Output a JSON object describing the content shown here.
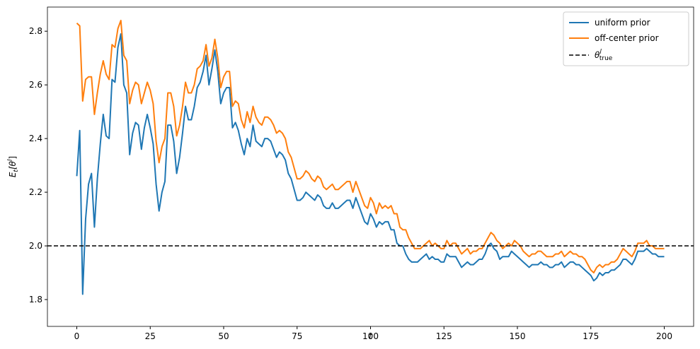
{
  "chart_data": {
    "type": "line",
    "xlabel": "t",
    "ylabel": {
      "main": "E",
      "sub": "t",
      "open": "[θ",
      "sup": "l",
      "close": "]"
    },
    "x": [
      0,
      1,
      2,
      3,
      4,
      5,
      6,
      7,
      8,
      9,
      10,
      11,
      12,
      13,
      14,
      15,
      16,
      17,
      18,
      19,
      20,
      21,
      22,
      23,
      24,
      25,
      26,
      27,
      28,
      29,
      30,
      31,
      32,
      33,
      34,
      35,
      36,
      37,
      38,
      39,
      40,
      41,
      42,
      43,
      44,
      45,
      46,
      47,
      48,
      49,
      50,
      51,
      52,
      53,
      54,
      55,
      56,
      57,
      58,
      59,
      60,
      61,
      62,
      63,
      64,
      65,
      66,
      67,
      68,
      69,
      70,
      71,
      72,
      73,
      74,
      75,
      76,
      77,
      78,
      79,
      80,
      81,
      82,
      83,
      84,
      85,
      86,
      87,
      88,
      89,
      90,
      91,
      92,
      93,
      94,
      95,
      96,
      97,
      98,
      99,
      100,
      101,
      102,
      103,
      104,
      105,
      106,
      107,
      108,
      109,
      110,
      111,
      112,
      113,
      114,
      115,
      116,
      117,
      118,
      119,
      120,
      121,
      122,
      123,
      124,
      125,
      126,
      127,
      128,
      129,
      130,
      131,
      132,
      133,
      134,
      135,
      136,
      137,
      138,
      139,
      140,
      141,
      142,
      143,
      144,
      145,
      146,
      147,
      148,
      149,
      150,
      151,
      152,
      153,
      154,
      155,
      156,
      157,
      158,
      159,
      160,
      161,
      162,
      163,
      164,
      165,
      166,
      167,
      168,
      169,
      170,
      171,
      172,
      173,
      174,
      175,
      176,
      177,
      178,
      179,
      180,
      181,
      182,
      183,
      184,
      185,
      186,
      187,
      188,
      189,
      190,
      191,
      192,
      193,
      194,
      195,
      196,
      197,
      198,
      199,
      200
    ],
    "series": [
      {
        "name": "uniform prior",
        "color": "#1f77b4",
        "values": [
          2.26,
          2.43,
          1.82,
          2.1,
          2.23,
          2.27,
          2.07,
          2.25,
          2.38,
          2.49,
          2.41,
          2.4,
          2.62,
          2.61,
          2.74,
          2.79,
          2.6,
          2.57,
          2.34,
          2.42,
          2.46,
          2.45,
          2.36,
          2.44,
          2.49,
          2.44,
          2.38,
          2.23,
          2.13,
          2.2,
          2.24,
          2.45,
          2.45,
          2.39,
          2.27,
          2.33,
          2.42,
          2.52,
          2.47,
          2.47,
          2.52,
          2.59,
          2.61,
          2.65,
          2.71,
          2.6,
          2.66,
          2.73,
          2.65,
          2.53,
          2.57,
          2.59,
          2.59,
          2.44,
          2.46,
          2.43,
          2.38,
          2.34,
          2.4,
          2.37,
          2.45,
          2.39,
          2.38,
          2.37,
          2.4,
          2.4,
          2.39,
          2.36,
          2.33,
          2.35,
          2.34,
          2.32,
          2.27,
          2.25,
          2.21,
          2.17,
          2.17,
          2.18,
          2.2,
          2.19,
          2.18,
          2.17,
          2.19,
          2.18,
          2.15,
          2.14,
          2.14,
          2.16,
          2.14,
          2.14,
          2.15,
          2.16,
          2.17,
          2.17,
          2.14,
          2.18,
          2.15,
          2.12,
          2.09,
          2.08,
          2.12,
          2.1,
          2.07,
          2.09,
          2.08,
          2.09,
          2.09,
          2.06,
          2.06,
          2.01,
          2.0,
          2.0,
          1.97,
          1.95,
          1.94,
          1.94,
          1.94,
          1.95,
          1.96,
          1.97,
          1.95,
          1.96,
          1.95,
          1.95,
          1.94,
          1.94,
          1.97,
          1.96,
          1.96,
          1.96,
          1.94,
          1.92,
          1.93,
          1.94,
          1.93,
          1.93,
          1.94,
          1.95,
          1.95,
          1.97,
          2.0,
          2.01,
          1.99,
          1.98,
          1.95,
          1.96,
          1.96,
          1.96,
          1.98,
          1.97,
          1.96,
          1.95,
          1.94,
          1.93,
          1.92,
          1.93,
          1.93,
          1.93,
          1.94,
          1.93,
          1.93,
          1.92,
          1.92,
          1.93,
          1.93,
          1.94,
          1.92,
          1.93,
          1.94,
          1.94,
          1.93,
          1.93,
          1.92,
          1.91,
          1.9,
          1.89,
          1.87,
          1.88,
          1.9,
          1.89,
          1.9,
          1.9,
          1.91,
          1.91,
          1.92,
          1.93,
          1.95,
          1.95,
          1.94,
          1.93,
          1.95,
          1.98,
          1.98,
          1.98,
          1.99,
          1.98,
          1.97,
          1.97,
          1.96,
          1.96,
          1.96
        ]
      },
      {
        "name": "off-center prior",
        "color": "#ff7f0e",
        "values": [
          2.83,
          2.82,
          2.54,
          2.62,
          2.63,
          2.63,
          2.49,
          2.57,
          2.64,
          2.69,
          2.64,
          2.62,
          2.75,
          2.74,
          2.81,
          2.84,
          2.71,
          2.69,
          2.53,
          2.58,
          2.61,
          2.6,
          2.53,
          2.57,
          2.61,
          2.58,
          2.53,
          2.39,
          2.31,
          2.37,
          2.4,
          2.57,
          2.57,
          2.52,
          2.41,
          2.45,
          2.52,
          2.61,
          2.57,
          2.57,
          2.6,
          2.66,
          2.67,
          2.69,
          2.75,
          2.67,
          2.7,
          2.77,
          2.7,
          2.59,
          2.63,
          2.65,
          2.65,
          2.52,
          2.54,
          2.53,
          2.47,
          2.44,
          2.5,
          2.46,
          2.52,
          2.48,
          2.46,
          2.45,
          2.48,
          2.48,
          2.47,
          2.45,
          2.42,
          2.43,
          2.42,
          2.4,
          2.35,
          2.33,
          2.29,
          2.25,
          2.25,
          2.26,
          2.28,
          2.27,
          2.25,
          2.24,
          2.26,
          2.25,
          2.22,
          2.21,
          2.22,
          2.23,
          2.21,
          2.21,
          2.22,
          2.23,
          2.24,
          2.24,
          2.2,
          2.24,
          2.21,
          2.18,
          2.15,
          2.14,
          2.18,
          2.16,
          2.12,
          2.16,
          2.14,
          2.15,
          2.14,
          2.15,
          2.12,
          2.12,
          2.07,
          2.06,
          2.06,
          2.03,
          2.01,
          1.99,
          1.99,
          1.99,
          2.0,
          2.01,
          2.02,
          2.0,
          2.01,
          2.0,
          1.99,
          1.99,
          2.02,
          2.0,
          2.01,
          2.01,
          1.99,
          1.97,
          1.98,
          1.99,
          1.97,
          1.98,
          1.98,
          1.99,
          1.99,
          2.01,
          2.03,
          2.05,
          2.04,
          2.02,
          2.01,
          1.99,
          2.0,
          2.01,
          2.0,
          2.02,
          2.01,
          2.0,
          1.98,
          1.97,
          1.96,
          1.97,
          1.97,
          1.98,
          1.98,
          1.97,
          1.96,
          1.96,
          1.96,
          1.97,
          1.97,
          1.98,
          1.96,
          1.97,
          1.98,
          1.97,
          1.97,
          1.96,
          1.96,
          1.95,
          1.93,
          1.91,
          1.9,
          1.92,
          1.93,
          1.92,
          1.93,
          1.93,
          1.94,
          1.94,
          1.95,
          1.97,
          1.99,
          1.98,
          1.97,
          1.96,
          1.98,
          2.01,
          2.01,
          2.01,
          2.02,
          2.0,
          2.0,
          1.99,
          1.99,
          1.99,
          1.99
        ]
      }
    ],
    "hline": {
      "value": 2.0,
      "color": "#000000",
      "dashed": true,
      "label": {
        "main": "θ",
        "sup": "l",
        "sub": "true"
      }
    },
    "xlim": [
      -10,
      210
    ],
    "xticks": [
      0,
      25,
      50,
      75,
      100,
      125,
      150,
      175,
      200
    ],
    "ylim": [
      1.7,
      2.89
    ],
    "yticks": [
      1.8,
      {
        "value": 2.0,
        "label": "2.0"
      },
      2.2,
      2.4,
      2.6,
      2.8
    ],
    "grid": false,
    "legend": "upper right"
  }
}
